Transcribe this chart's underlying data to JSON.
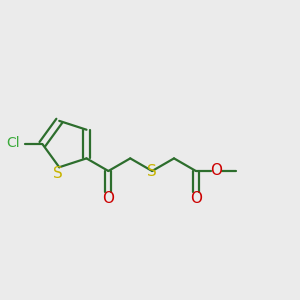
{
  "background_color": "#ebebeb",
  "bond_color": "#2d6e2d",
  "S_color": "#c8b400",
  "Cl_color": "#3aaa3a",
  "O_color": "#cc0000",
  "line_width": 1.6,
  "font_size": 10,
  "label_fontsize": 10,
  "fig_size": [
    3.0,
    3.0
  ],
  "dpi": 100,
  "xlim": [
    0,
    10
  ],
  "ylim": [
    0,
    10
  ]
}
